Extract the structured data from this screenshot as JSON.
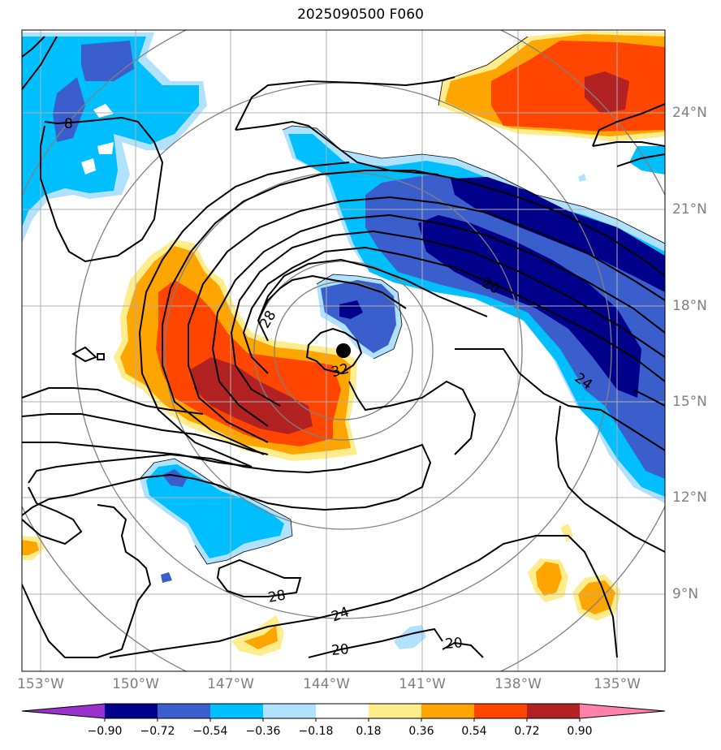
{
  "title": "2025090500 F060",
  "map": {
    "lon_labels": [
      "153°W",
      "150°W",
      "147°W",
      "144°W",
      "141°W",
      "138°W",
      "135°W"
    ],
    "lat_labels": [
      "24°N",
      "21°N",
      "18°N",
      "15°N",
      "12°N",
      "9°N"
    ],
    "contour_labels": [
      "8",
      "28",
      "32",
      "20",
      "24",
      "28",
      "24",
      "20",
      "20"
    ],
    "center_marker": "storm-center",
    "range_ring_color": "#808080",
    "grid_color": "#b0b0b0"
  },
  "colorbar": {
    "ticks": [
      "−0.90",
      "−0.72",
      "−0.54",
      "−0.36",
      "−0.18",
      "0.18",
      "0.36",
      "0.54",
      "0.72",
      "0.90"
    ],
    "colors": [
      "#9932cc",
      "#00008b",
      "#3a5fcd",
      "#00bfff",
      "#b0e2ff",
      "#ffffff",
      "#ffec8b",
      "#ffa500",
      "#ff4500",
      "#b22222",
      "#ff82ab"
    ],
    "extend": "both"
  }
}
